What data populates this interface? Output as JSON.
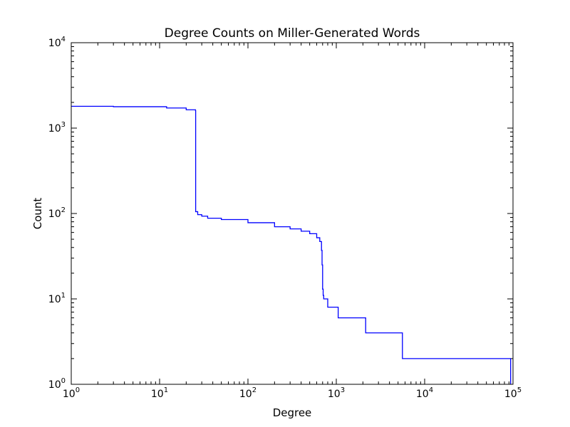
{
  "chart_data": {
    "type": "line",
    "title": "Degree Counts on Miller-Generated Words",
    "xlabel": "Degree",
    "ylabel": "Count",
    "xscale": "log",
    "yscale": "log",
    "xlim": [
      1,
      100000
    ],
    "ylim": [
      1,
      10000
    ],
    "grid": false,
    "legend": "none",
    "line_color": "#0000ff",
    "x_tick_labels": [
      {
        "base": "10",
        "exp": "0"
      },
      {
        "base": "10",
        "exp": "1"
      },
      {
        "base": "10",
        "exp": "2"
      },
      {
        "base": "10",
        "exp": "3"
      },
      {
        "base": "10",
        "exp": "4"
      },
      {
        "base": "10",
        "exp": "5"
      }
    ],
    "y_tick_labels": [
      {
        "base": "10",
        "exp": "0"
      },
      {
        "base": "10",
        "exp": "1"
      },
      {
        "base": "10",
        "exp": "2"
      },
      {
        "base": "10",
        "exp": "3"
      },
      {
        "base": "10",
        "exp": "4"
      }
    ],
    "series": [
      {
        "step": "post",
        "x": [
          1,
          3,
          12,
          20,
          25.5,
          25.6,
          27,
          30,
          35,
          50,
          100,
          200,
          300,
          400,
          500,
          600,
          650,
          680,
          690,
          700,
          710,
          720,
          750,
          800,
          1050,
          2150,
          5600,
          94000,
          94001
        ],
        "y": [
          1800,
          1780,
          1720,
          1640,
          1600,
          105,
          97,
          93,
          88,
          85,
          78,
          70,
          66,
          62,
          58,
          52,
          47,
          37,
          25,
          13,
          11,
          10,
          10,
          8,
          6,
          4,
          2,
          2,
          1
        ]
      }
    ]
  }
}
